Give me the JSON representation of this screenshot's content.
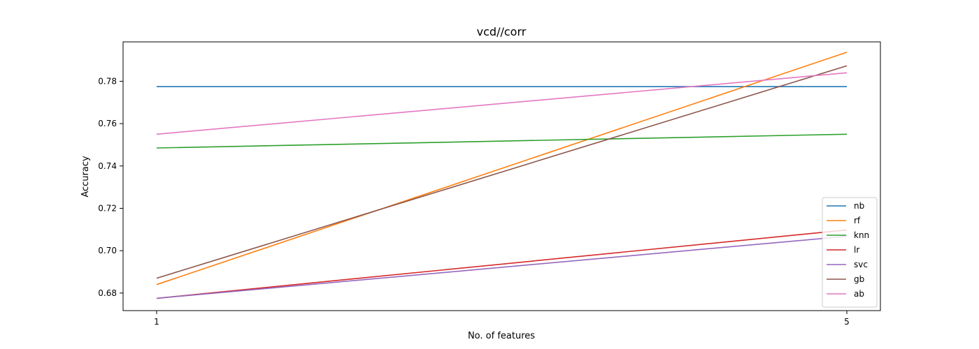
{
  "chart_data": {
    "type": "line",
    "title": "vcd//corr",
    "xlabel": "No. of features",
    "ylabel": "Accuracy",
    "x": [
      1,
      5
    ],
    "xticks": [
      "1",
      "5"
    ],
    "ylim": [
      0.6717,
      0.7986
    ],
    "yticks": [
      "0.68",
      "0.70",
      "0.72",
      "0.74",
      "0.76",
      "0.78"
    ],
    "grid": false,
    "legend_position": "bottom-right",
    "series": [
      {
        "name": "nb",
        "color": "#1f77b4",
        "values": [
          0.7775,
          0.7775
        ]
      },
      {
        "name": "rf",
        "color": "#ff7f0e",
        "values": [
          0.684,
          0.7937
        ]
      },
      {
        "name": "knn",
        "color": "#2ca02c",
        "values": [
          0.7485,
          0.755
        ]
      },
      {
        "name": "lr",
        "color": "#d62728",
        "values": [
          0.6775,
          0.7098
        ]
      },
      {
        "name": "svc",
        "color": "#9467bd",
        "values": [
          0.6775,
          0.7068
        ]
      },
      {
        "name": "gb",
        "color": "#8c564b",
        "values": [
          0.687,
          0.7873
        ]
      },
      {
        "name": "ab",
        "color": "#e377c2",
        "values": [
          0.755,
          0.784
        ]
      }
    ]
  }
}
